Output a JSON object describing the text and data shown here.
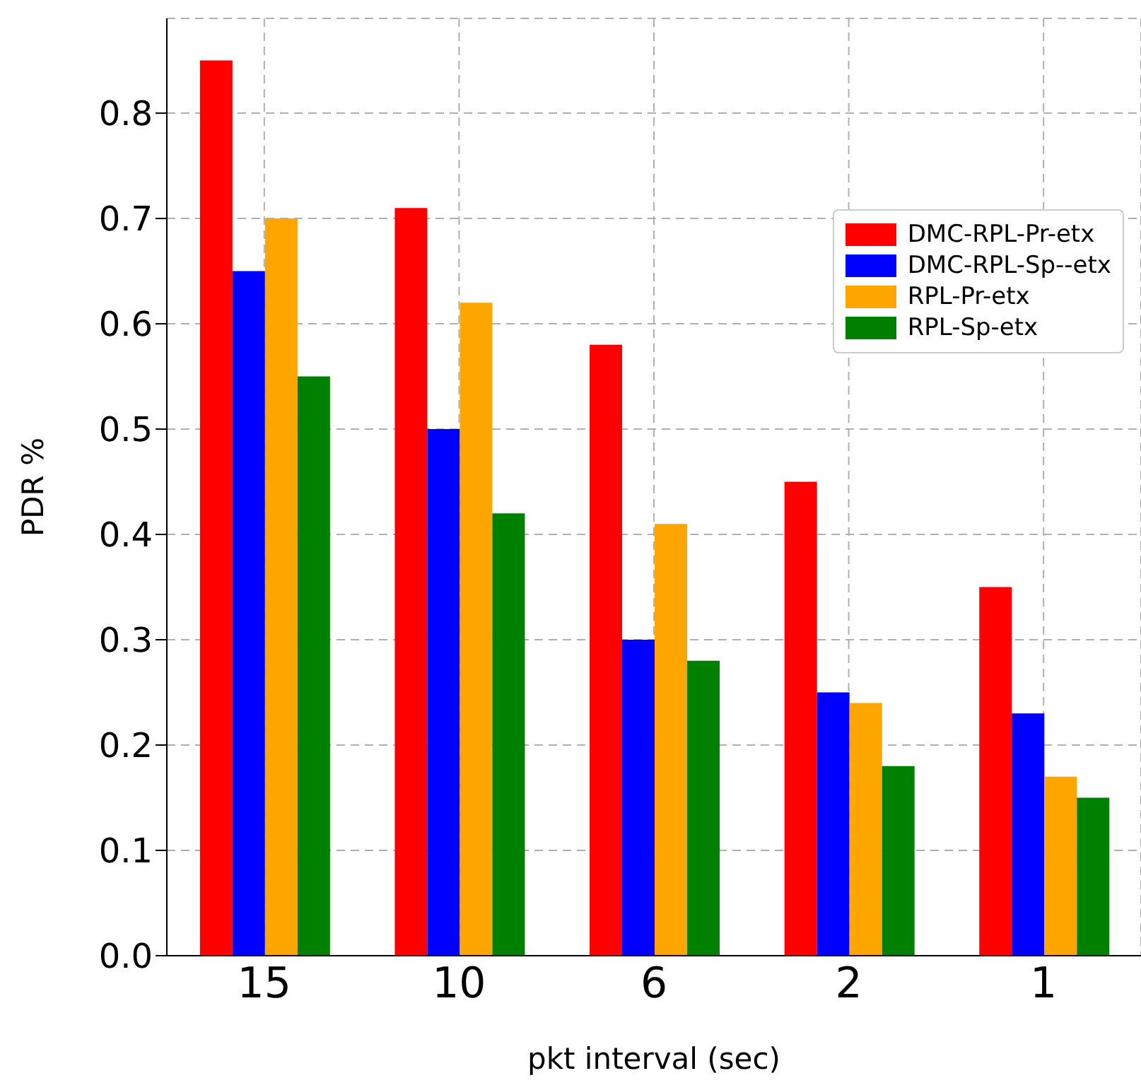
{
  "chart_data": {
    "type": "bar",
    "xlabel": "pkt interval (sec)",
    "ylabel": "PDR %",
    "categories": [
      "15",
      "10",
      "6",
      "2",
      "1"
    ],
    "series": [
      {
        "name": "DMC-RPL-Pr-etx",
        "color": "#ff0000",
        "values": [
          0.85,
          0.71,
          0.58,
          0.45,
          0.35
        ]
      },
      {
        "name": "DMC-RPL-Sp--etx",
        "color": "#0000ff",
        "values": [
          0.65,
          0.5,
          0.3,
          0.25,
          0.23
        ]
      },
      {
        "name": "RPL-Pr-etx",
        "color": "#ffa500",
        "values": [
          0.7,
          0.62,
          0.41,
          0.24,
          0.17
        ]
      },
      {
        "name": "RPL-Sp-etx",
        "color": "#008000",
        "values": [
          0.55,
          0.42,
          0.28,
          0.18,
          0.15
        ]
      }
    ],
    "ylim": [
      0,
      0.89
    ],
    "yticks": [
      {
        "value": 0,
        "label": "0.0"
      },
      0.1,
      0.2,
      0.3,
      0.4,
      0.5,
      0.6,
      0.7,
      0.8
    ],
    "grid": true,
    "legend": "top right"
  }
}
